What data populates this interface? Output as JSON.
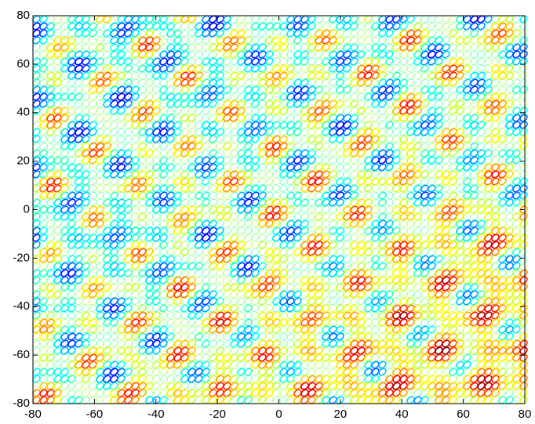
{
  "chart_data": {
    "type": "contour",
    "xlim": [
      -80,
      80
    ],
    "ylim": [
      -80,
      80
    ],
    "xticks": [
      -80,
      -60,
      -40,
      -20,
      0,
      20,
      40,
      60,
      80
    ],
    "yticks": [
      -80,
      -60,
      -40,
      -20,
      0,
      20,
      40,
      60,
      80
    ]
  }
}
